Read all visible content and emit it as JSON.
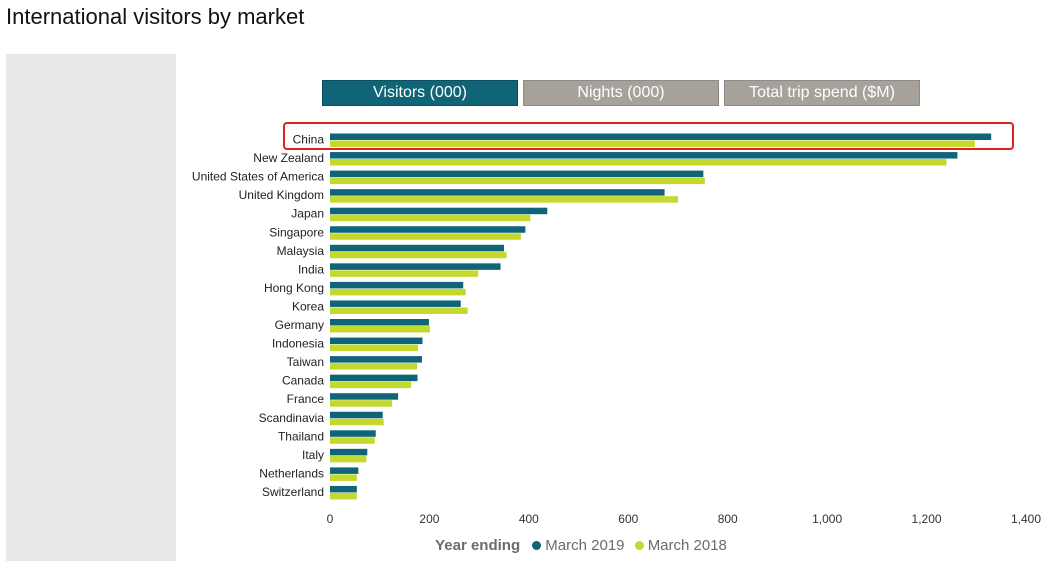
{
  "page": {
    "title": "International visitors by market"
  },
  "tabs": [
    {
      "label": "Visitors (000)",
      "active": true
    },
    {
      "label": "Nights (000)",
      "active": false
    },
    {
      "label": "Total trip spend ($M)",
      "active": false
    }
  ],
  "legend": {
    "title": "Year ending",
    "items": [
      "March 2019",
      "March 2018"
    ]
  },
  "colors": {
    "tab_active": "#0f6577",
    "tab_inactive": "#a6a19b",
    "series_2019": "#0f6577",
    "series_2018": "#c5d82e",
    "highlight_box": "#e02020"
  },
  "highlight": {
    "category": "China"
  },
  "chart_data": {
    "type": "bar",
    "orientation": "horizontal",
    "categories": [
      "China",
      "New Zealand",
      "United States of America",
      "United Kingdom",
      "Japan",
      "Singapore",
      "Malaysia",
      "India",
      "Hong Kong",
      "Korea",
      "Germany",
      "Indonesia",
      "Taiwan",
      "Canada",
      "France",
      "Scandinavia",
      "Thailand",
      "Italy",
      "Netherlands",
      "Switzerland"
    ],
    "series": [
      {
        "name": "March 2019",
        "values": [
          1330,
          1262,
          751,
          673,
          437,
          393,
          350,
          343,
          268,
          263,
          199,
          186,
          185,
          176,
          137,
          106,
          92,
          75,
          57,
          54
        ]
      },
      {
        "name": "March 2018",
        "values": [
          1297,
          1240,
          754,
          700,
          403,
          384,
          355,
          298,
          273,
          277,
          201,
          177,
          175,
          163,
          125,
          108,
          90,
          73,
          54,
          54
        ]
      }
    ],
    "xlim": [
      0,
      1400
    ],
    "xticks": [
      0,
      200,
      400,
      600,
      800,
      1000,
      1200,
      1400
    ],
    "xtick_labels": [
      "0",
      "200",
      "400",
      "600",
      "800",
      "1,000",
      "1,200",
      "1,400"
    ],
    "grid": false,
    "legend_position": "bottom"
  }
}
